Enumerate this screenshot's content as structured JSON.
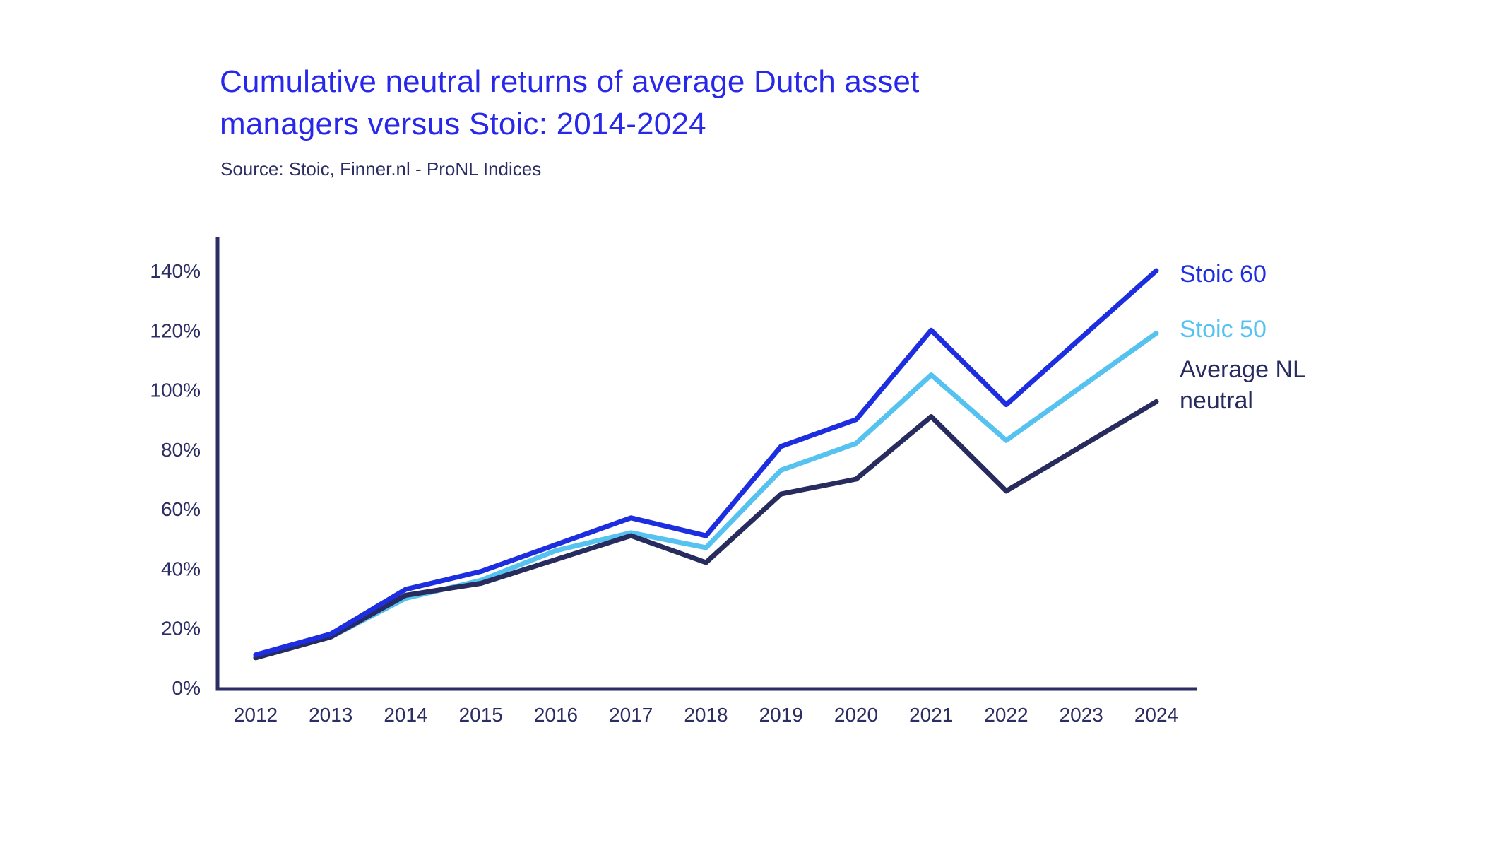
{
  "header": {
    "title_line1": "Cumulative neutral returns of average Dutch asset",
    "title_line2": "managers versus Stoic: 2014-2024",
    "source": "Source: Stoic, Finner.nl - ProNL Indices"
  },
  "colors": {
    "background": "#ffffff",
    "title_blue": "#2828eb",
    "axis_navy": "#2b2d63",
    "stoic60_blue": "#1c2ee0",
    "stoic50_lightblue": "#55c2f0",
    "average_nl_navy": "#272b5e"
  },
  "chart_data": {
    "type": "line",
    "title": "Cumulative neutral returns of average Dutch asset managers versus Stoic: 2014-2024",
    "source": "Source: Stoic, Finner.nl - ProNL Indices",
    "x": [
      2012,
      2013,
      2014,
      2015,
      2016,
      2017,
      2018,
      2019,
      2020,
      2021,
      2022,
      2023,
      2024
    ],
    "x_tick_labels": [
      "2012",
      "2013",
      "2014",
      "2015",
      "2016",
      "2017",
      "2018",
      "2019",
      "2020",
      "2021",
      "2022",
      "2023",
      "2024"
    ],
    "y_ticks": [
      0,
      20,
      40,
      60,
      80,
      100,
      120,
      140
    ],
    "y_tick_labels": [
      "0%",
      "20%",
      "40%",
      "60%",
      "80%",
      "100%",
      "120%",
      "140%"
    ],
    "ylabel": "",
    "xlabel": "",
    "ylim": [
      0,
      151
    ],
    "grid": false,
    "legend_position": "right",
    "series": [
      {
        "name": "Stoic 60",
        "color": "#1c2ee0",
        "values": [
          11,
          18,
          33,
          39,
          48,
          57,
          51,
          81,
          90,
          120,
          95,
          117.5,
          140
        ]
      },
      {
        "name": "Stoic 50",
        "color": "#55c2f0",
        "values": [
          10.5,
          17,
          30,
          36,
          46,
          52,
          47,
          73,
          82,
          105,
          83,
          101,
          119
        ]
      },
      {
        "name": "Average NL neutral",
        "color": "#272b5e",
        "values": [
          10,
          17,
          31,
          35,
          43,
          51,
          42,
          65,
          70,
          91,
          66,
          81,
          96
        ]
      }
    ]
  }
}
